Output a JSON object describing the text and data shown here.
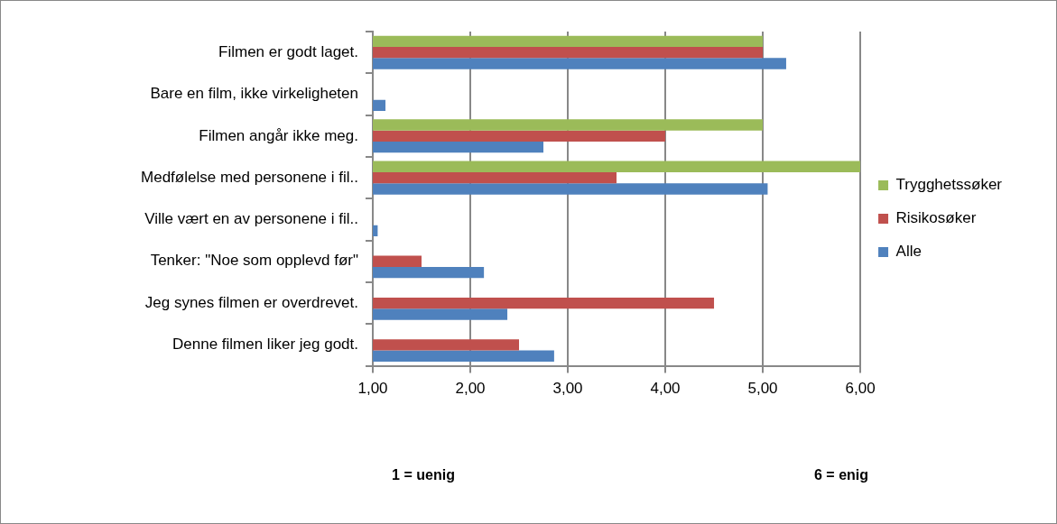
{
  "chart_data": {
    "type": "bar",
    "orientation": "horizontal",
    "categories": [
      "Filmen er godt laget.",
      "Bare en film, ikke virkeligheten",
      "Filmen angår ikke meg.",
      "Medfølelse med personene i fil..",
      "Ville vært en av personene i fil..",
      "Tenker: \"Noe som opplevd før\"",
      "Jeg synes filmen er overdrevet.",
      "Denne filmen liker jeg godt."
    ],
    "series": [
      {
        "name": "Trygghetssøker",
        "color": "#9bbb59",
        "values": [
          5.0,
          null,
          5.0,
          6.0,
          null,
          null,
          null,
          null
        ]
      },
      {
        "name": "Risikosøker",
        "color": "#c0504d",
        "values": [
          5.0,
          null,
          4.0,
          3.5,
          null,
          1.5,
          4.5,
          2.5
        ]
      },
      {
        "name": "Alle",
        "color": "#4f81bd",
        "values": [
          5.24,
          1.13,
          2.75,
          5.05,
          1.05,
          2.14,
          2.38,
          2.86
        ]
      }
    ],
    "xlim": [
      1,
      6
    ],
    "xticks": [
      {
        "value": 1,
        "label": "1,00"
      },
      {
        "value": 2,
        "label": "2,00"
      },
      {
        "value": 3,
        "label": "3,00"
      },
      {
        "value": 4,
        "label": "4,00"
      },
      {
        "value": 5,
        "label": "5,00"
      },
      {
        "value": 6,
        "label": "6,00"
      }
    ],
    "grid": "x",
    "legend": "right",
    "annotations": [
      "1 = uenig",
      "6 = enig"
    ]
  }
}
